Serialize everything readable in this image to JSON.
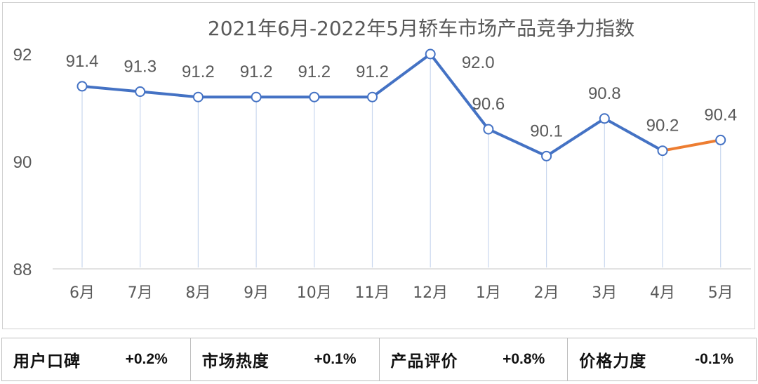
{
  "chart_data": {
    "type": "line",
    "title": "2021年6月-2022年5月轿车市场产品竞争力指数",
    "categories": [
      "6月",
      "7月",
      "8月",
      "9月",
      "10月",
      "11月",
      "12月",
      "1月",
      "2月",
      "3月",
      "4月",
      "5月"
    ],
    "values": [
      91.4,
      91.3,
      91.2,
      91.2,
      91.2,
      91.2,
      92.0,
      90.6,
      90.1,
      90.8,
      90.2,
      90.4
    ],
    "data_labels": [
      "91.4",
      "91.3",
      "91.2",
      "91.2",
      "91.2",
      "91.2",
      "92.0",
      "90.6",
      "90.1",
      "90.8",
      "90.2",
      "90.4"
    ],
    "ylim": [
      88,
      92
    ],
    "yticks": [
      "88",
      "90",
      "92"
    ],
    "grid": false,
    "colors": {
      "line": "#4472c4",
      "last_segment": "#ed7d31",
      "drop_line": "#c9d7ee",
      "text": "#595959"
    }
  },
  "summary": [
    {
      "label": "用户口碑",
      "value": "+0.2%"
    },
    {
      "label": "市场热度",
      "value": "+0.1%"
    },
    {
      "label": "产品评价",
      "value": "+0.8%"
    },
    {
      "label": "价格力度",
      "value": "-0.1%"
    }
  ]
}
